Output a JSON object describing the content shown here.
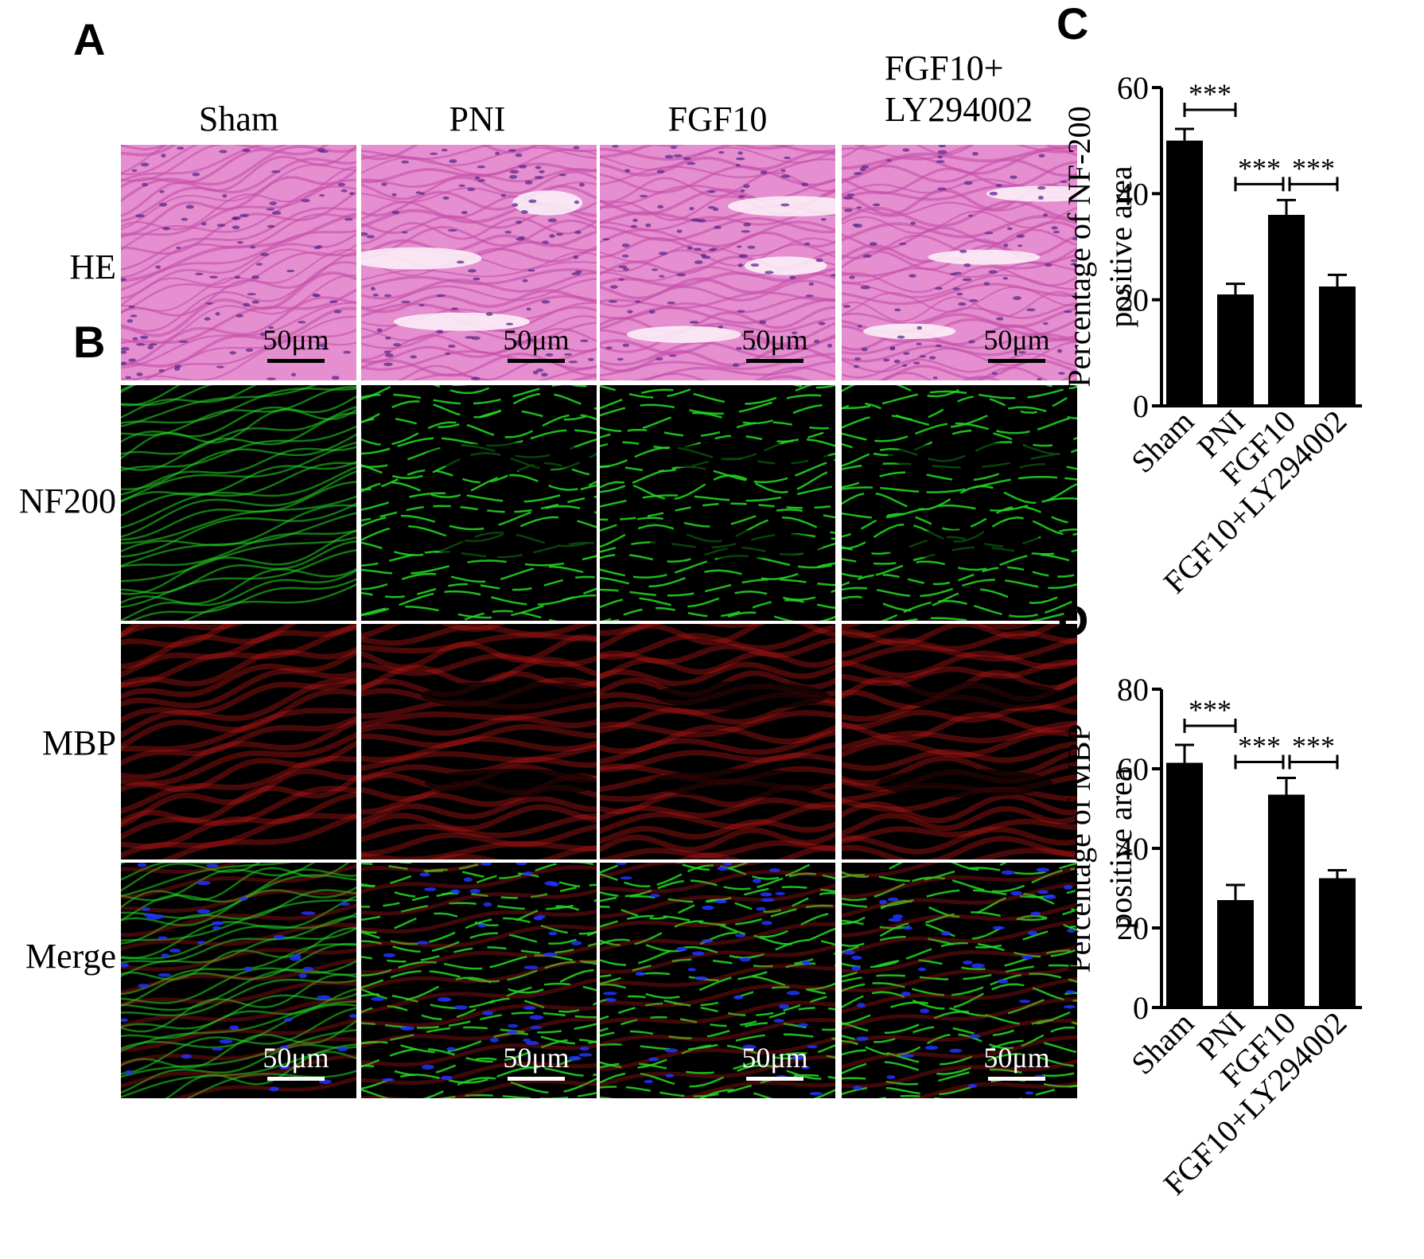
{
  "panels": {
    "A": "A",
    "B": "B",
    "C": "C",
    "D": "D"
  },
  "columns": [
    {
      "label": "Sham"
    },
    {
      "label": "PNI"
    },
    {
      "label": "FGF10"
    },
    {
      "label": "FGF10+\nLY294002"
    }
  ],
  "rows": [
    {
      "label": "HE"
    },
    {
      "label": "NF200"
    },
    {
      "label": "MBP"
    },
    {
      "label": "Merge"
    }
  ],
  "scale_bar_label": "50μm",
  "colors": {
    "he_bg": "#e58fd0",
    "he_fiber": "#c44fa8",
    "he_nuclei": "#5a2a8a",
    "nf200": "#22dd22",
    "mbp": "#d41a1a",
    "dapi": "#2233ff"
  },
  "chart_data": [
    {
      "type": "bar",
      "panel": "C",
      "categories": [
        "Sham",
        "PNI",
        "FGF10",
        "FGF10+LY294002"
      ],
      "values": [
        50,
        21,
        36,
        22.5
      ],
      "errors": [
        2.2,
        2.0,
        2.8,
        2.2
      ],
      "ylabel": "Percentage of NF-200\npositive area",
      "ylim": [
        0,
        60
      ],
      "yticks": [
        0,
        20,
        40,
        60
      ],
      "significance": [
        {
          "from": 0,
          "to": 1,
          "label": "***"
        },
        {
          "from": 1,
          "to": 2,
          "label": "***"
        },
        {
          "from": 2,
          "to": 3,
          "label": "***"
        }
      ],
      "grid": false
    },
    {
      "type": "bar",
      "panel": "D",
      "categories": [
        "Sham",
        "PNI",
        "FGF10",
        "FGF10+LY294002"
      ],
      "values": [
        61.5,
        27,
        53.5,
        32.5
      ],
      "errors": [
        4.5,
        3.8,
        4.2,
        2.0
      ],
      "ylabel": "Percentage of MBP\npositive area",
      "ylim": [
        0,
        80
      ],
      "yticks": [
        0,
        20,
        40,
        60,
        80
      ],
      "significance": [
        {
          "from": 0,
          "to": 1,
          "label": "***"
        },
        {
          "from": 1,
          "to": 2,
          "label": "***"
        },
        {
          "from": 2,
          "to": 3,
          "label": "***"
        }
      ],
      "grid": false
    }
  ]
}
